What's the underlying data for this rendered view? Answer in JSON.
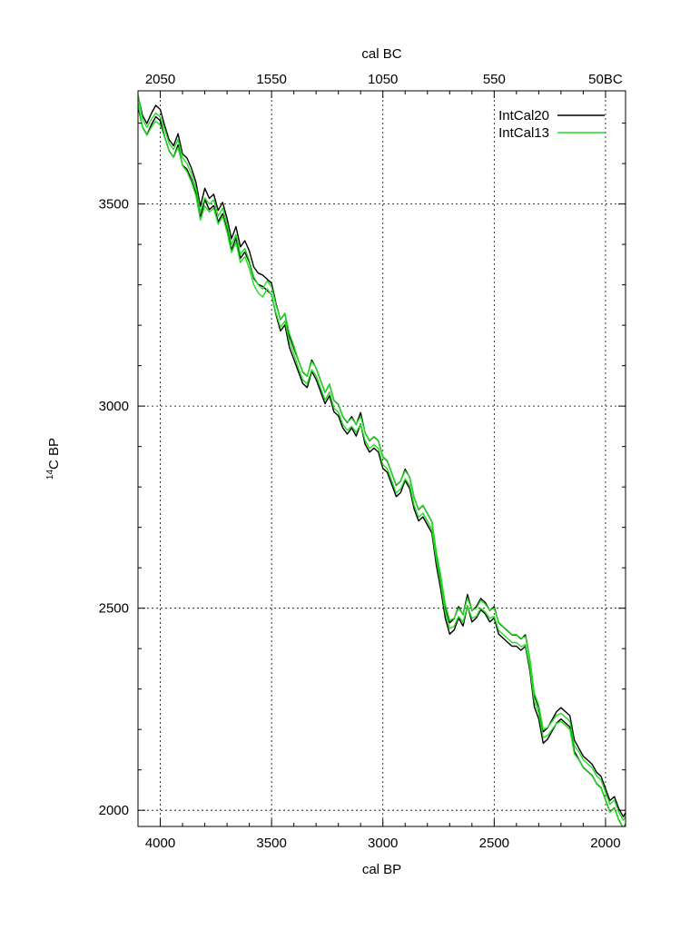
{
  "chart_data": {
    "type": "line",
    "title": "",
    "xlabel": "cal BP",
    "xlabel_top": "cal BC",
    "ylabel": "14C BP",
    "ylabel_sup": "14",
    "ylabel_main": "C BP",
    "xlim": [
      4100,
      1910
    ],
    "ylim": [
      1960,
      3780
    ],
    "x_ticks": [
      4000,
      3500,
      3000,
      2500,
      2000
    ],
    "x_tick_labels": [
      "4000",
      "3500",
      "3000",
      "2500",
      "2000"
    ],
    "x_top_ticks": [
      4000,
      3500,
      3000,
      2500,
      2000
    ],
    "x_top_tick_labels": [
      "2050",
      "1550",
      "1050",
      "550",
      "50BC"
    ],
    "y_ticks": [
      2000,
      2500,
      3000,
      3500
    ],
    "y_tick_labels": [
      "2000",
      "2500",
      "3000",
      "3500"
    ],
    "grid": true,
    "legend_position": "top-right",
    "colors": {
      "IntCal20": "#000000",
      "IntCal13": "#22dd22"
    },
    "series": [
      {
        "name": "IntCal20",
        "band": 14,
        "x": [
          4100,
          4080,
          4060,
          4040,
          4020,
          4000,
          3980,
          3960,
          3940,
          3920,
          3900,
          3880,
          3860,
          3840,
          3820,
          3800,
          3780,
          3760,
          3740,
          3720,
          3700,
          3680,
          3660,
          3640,
          3620,
          3600,
          3580,
          3560,
          3540,
          3520,
          3500,
          3480,
          3460,
          3440,
          3420,
          3400,
          3380,
          3360,
          3340,
          3320,
          3300,
          3280,
          3260,
          3240,
          3220,
          3200,
          3180,
          3160,
          3140,
          3120,
          3100,
          3080,
          3060,
          3040,
          3020,
          3000,
          2980,
          2960,
          2940,
          2920,
          2900,
          2880,
          2860,
          2840,
          2820,
          2800,
          2780,
          2760,
          2740,
          2720,
          2700,
          2680,
          2660,
          2640,
          2620,
          2600,
          2580,
          2560,
          2540,
          2520,
          2500,
          2480,
          2460,
          2440,
          2420,
          2400,
          2380,
          2360,
          2340,
          2320,
          2300,
          2280,
          2260,
          2240,
          2220,
          2200,
          2180,
          2160,
          2140,
          2120,
          2100,
          2080,
          2060,
          2040,
          2020,
          2000,
          1980,
          1960,
          1940,
          1920,
          1910
        ],
        "y": [
          3755,
          3705,
          3685,
          3710,
          3730,
          3720,
          3680,
          3645,
          3630,
          3660,
          3610,
          3600,
          3575,
          3540,
          3480,
          3525,
          3500,
          3510,
          3470,
          3490,
          3450,
          3400,
          3430,
          3380,
          3395,
          3370,
          3330,
          3315,
          3310,
          3300,
          3290,
          3240,
          3200,
          3215,
          3160,
          3130,
          3100,
          3070,
          3060,
          3100,
          3080,
          3050,
          3020,
          3040,
          3000,
          2990,
          2960,
          2945,
          2960,
          2940,
          2970,
          2920,
          2900,
          2910,
          2900,
          2860,
          2850,
          2820,
          2790,
          2800,
          2830,
          2810,
          2760,
          2730,
          2740,
          2720,
          2700,
          2620,
          2560,
          2490,
          2450,
          2460,
          2490,
          2470,
          2520,
          2480,
          2490,
          2510,
          2500,
          2480,
          2490,
          2450,
          2440,
          2430,
          2420,
          2420,
          2410,
          2420,
          2360,
          2270,
          2240,
          2180,
          2190,
          2210,
          2230,
          2240,
          2230,
          2220,
          2160,
          2140,
          2120,
          2110,
          2100,
          2080,
          2070,
          2040,
          2010,
          2020,
          1990,
          1970,
          1980
        ]
      },
      {
        "name": "IntCal13",
        "band": 10,
        "x": [
          4100,
          4080,
          4060,
          4040,
          4020,
          4000,
          3980,
          3960,
          3940,
          3920,
          3900,
          3880,
          3860,
          3840,
          3820,
          3800,
          3780,
          3760,
          3740,
          3720,
          3700,
          3680,
          3660,
          3640,
          3620,
          3600,
          3580,
          3560,
          3540,
          3520,
          3500,
          3480,
          3460,
          3440,
          3420,
          3400,
          3380,
          3360,
          3340,
          3320,
          3300,
          3280,
          3260,
          3240,
          3220,
          3200,
          3180,
          3160,
          3140,
          3120,
          3100,
          3080,
          3060,
          3040,
          3020,
          3000,
          2980,
          2960,
          2940,
          2920,
          2900,
          2880,
          2860,
          2840,
          2820,
          2800,
          2780,
          2760,
          2740,
          2720,
          2700,
          2680,
          2660,
          2640,
          2620,
          2600,
          2580,
          2560,
          2540,
          2520,
          2500,
          2480,
          2460,
          2440,
          2420,
          2400,
          2380,
          2360,
          2340,
          2320,
          2300,
          2280,
          2260,
          2240,
          2220,
          2200,
          2180,
          2160,
          2140,
          2120,
          2100,
          2080,
          2060,
          2040,
          2020,
          2000,
          1980,
          1960,
          1940,
          1920,
          1910
        ],
        "y": [
          3760,
          3700,
          3680,
          3700,
          3715,
          3705,
          3675,
          3640,
          3625,
          3650,
          3605,
          3590,
          3565,
          3530,
          3470,
          3505,
          3490,
          3500,
          3460,
          3480,
          3440,
          3390,
          3415,
          3365,
          3380,
          3350,
          3310,
          3290,
          3280,
          3300,
          3285,
          3240,
          3205,
          3220,
          3170,
          3140,
          3105,
          3075,
          3065,
          3100,
          3085,
          3055,
          3025,
          3045,
          3005,
          2995,
          2965,
          2950,
          2960,
          2945,
          2965,
          2925,
          2905,
          2915,
          2905,
          2865,
          2855,
          2825,
          2795,
          2805,
          2830,
          2815,
          2765,
          2735,
          2745,
          2725,
          2705,
          2630,
          2570,
          2500,
          2460,
          2465,
          2490,
          2475,
          2515,
          2485,
          2490,
          2510,
          2500,
          2485,
          2490,
          2455,
          2445,
          2435,
          2425,
          2425,
          2415,
          2420,
          2365,
          2280,
          2250,
          2190,
          2195,
          2210,
          2225,
          2230,
          2220,
          2210,
          2150,
          2135,
          2115,
          2105,
          2095,
          2075,
          2065,
          2035,
          2005,
          2015,
          1985,
          1965,
          1975
        ]
      }
    ]
  }
}
